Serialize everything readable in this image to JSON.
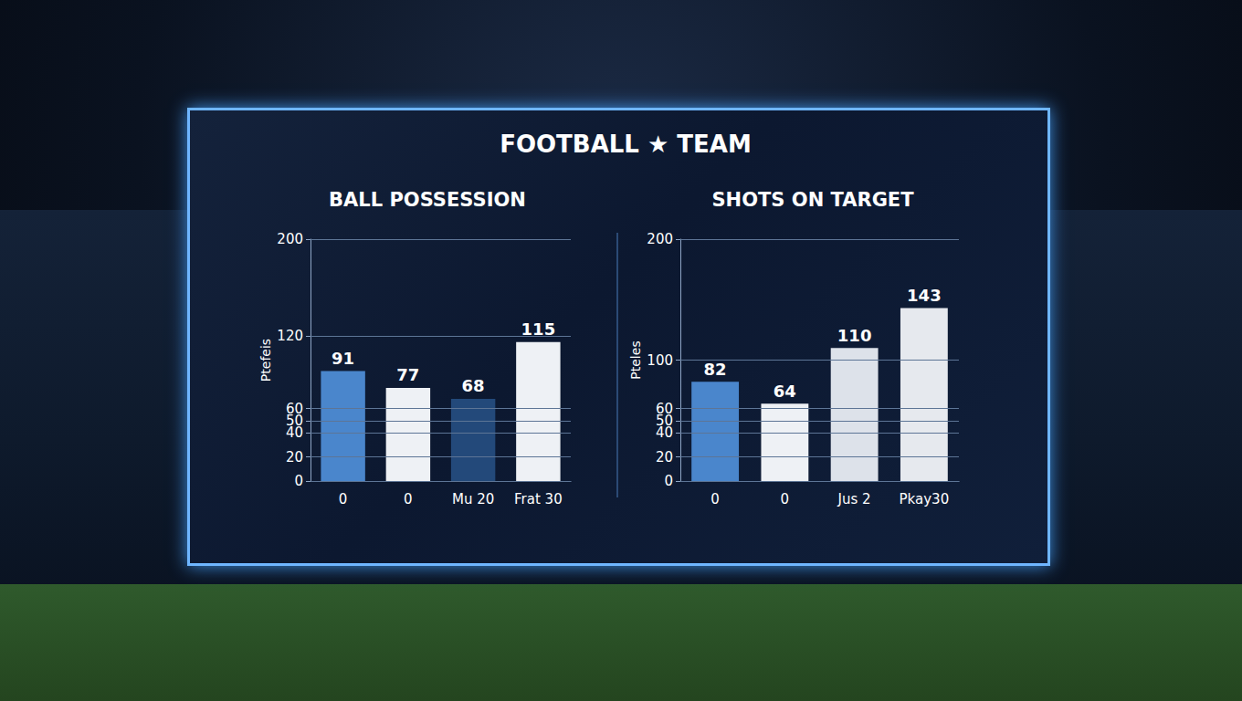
{
  "title": "FOOTBALL ★ TEAM",
  "chart_data": [
    {
      "type": "bar",
      "title": "BALL POSSESSION",
      "y_label": "Ptefeis",
      "categories": [
        "0",
        "0",
        "Mu 20",
        "Frat 30"
      ],
      "values": [
        91,
        77,
        68,
        115
      ],
      "colors": [
        "#4a86cc",
        "#eef1f5",
        "#23497a",
        "#eef1f5"
      ],
      "ylim": [
        0,
        200
      ],
      "yticks": [
        0,
        20,
        40,
        50,
        60,
        120,
        200
      ],
      "grid": true,
      "data_labels": true
    },
    {
      "type": "bar",
      "title": "SHOTS ON TARGET",
      "y_label": "Pteles",
      "categories": [
        "0",
        "0",
        "Jus 2",
        "Pkay30"
      ],
      "values": [
        82,
        64,
        110,
        143
      ],
      "colors": [
        "#4a86cc",
        "#eef1f5",
        "#dde2ea",
        "#e6e9ee"
      ],
      "ylim": [
        0,
        200
      ],
      "yticks": [
        0,
        20,
        40,
        50,
        60,
        100,
        200
      ],
      "grid": true,
      "data_labels": true
    }
  ]
}
